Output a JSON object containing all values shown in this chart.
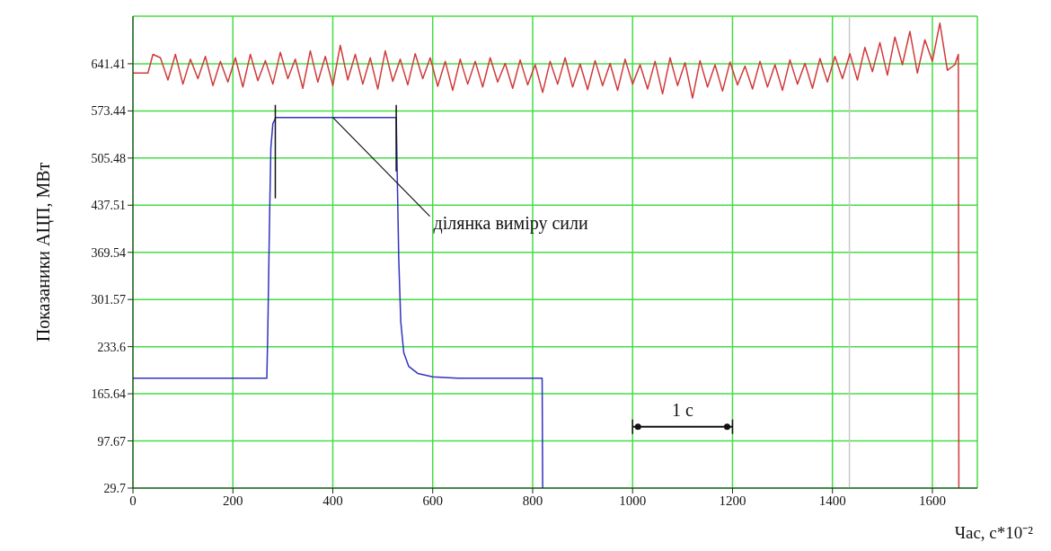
{
  "chart_data": {
    "type": "line",
    "xlabel": "Час, с*10⁻²",
    "ylabel": "Показаники АЦП, МВт",
    "xlim": [
      0,
      1690
    ],
    "xticks": [
      0,
      200,
      400,
      600,
      800,
      1000,
      1200,
      1400,
      1600
    ],
    "ylim": [
      29.7,
      710
    ],
    "yticks": [
      29.7,
      97.67,
      165.64,
      233.6,
      301.57,
      369.54,
      437.51,
      505.48,
      573.44,
      641.41
    ],
    "grid": true,
    "legend": false,
    "marker": "none",
    "line_style": "solid",
    "ref_lines": [
      {
        "axis": "x",
        "value": 1434,
        "color": "#c8c8c8"
      }
    ],
    "annotations": [
      {
        "text": "ділянка виміру сили",
        "x": 400,
        "y": 564
      },
      "1 с"
    ],
    "series": [
      {
        "color": "#d03a3a",
        "x": [
          0,
          30,
          40,
          55,
          70,
          85,
          100,
          115,
          130,
          145,
          160,
          175,
          190,
          205,
          220,
          235,
          250,
          265,
          280,
          295,
          310,
          325,
          340,
          355,
          370,
          385,
          400,
          415,
          430,
          445,
          460,
          475,
          490,
          505,
          520,
          535,
          550,
          565,
          580,
          595,
          610,
          625,
          640,
          655,
          670,
          685,
          700,
          715,
          730,
          745,
          760,
          775,
          790,
          805,
          820,
          835,
          850,
          865,
          880,
          895,
          910,
          925,
          940,
          955,
          970,
          985,
          1000,
          1015,
          1030,
          1045,
          1060,
          1075,
          1090,
          1105,
          1120,
          1135,
          1150,
          1165,
          1180,
          1195,
          1210,
          1225,
          1240,
          1255,
          1270,
          1285,
          1300,
          1315,
          1330,
          1345,
          1360,
          1375,
          1390,
          1405,
          1420,
          1435,
          1450,
          1465,
          1480,
          1495,
          1510,
          1525,
          1540,
          1555,
          1570,
          1585,
          1600,
          1615,
          1630,
          1645,
          1652,
          1653
        ],
        "values": [
          628,
          628,
          655,
          650,
          618,
          655,
          612,
          648,
          620,
          652,
          610,
          645,
          615,
          650,
          608,
          655,
          617,
          646,
          612,
          658,
          620,
          648,
          606,
          660,
          615,
          652,
          610,
          668,
          618,
          655,
          612,
          650,
          605,
          660,
          616,
          648,
          611,
          656,
          620,
          650,
          609,
          645,
          603,
          648,
          612,
          645,
          608,
          650,
          615,
          642,
          606,
          647,
          611,
          640,
          600,
          645,
          612,
          650,
          608,
          641,
          604,
          646,
          610,
          642,
          603,
          648,
          612,
          640,
          605,
          645,
          598,
          650,
          610,
          643,
          592,
          646,
          608,
          640,
          602,
          644,
          611,
          638,
          605,
          645,
          608,
          640,
          603,
          647,
          612,
          642,
          606,
          649,
          615,
          652,
          620,
          656,
          618,
          665,
          630,
          672,
          625,
          680,
          640,
          688,
          628,
          676,
          645,
          700,
          632,
          640,
          655,
          29.7
        ]
      },
      {
        "color": "#3232c0",
        "x": [
          0,
          268,
          270,
          273,
          276,
          280,
          286,
          527,
          529,
          532,
          536,
          542,
          552,
          570,
          600,
          650,
          819,
          820
        ],
        "values": [
          188,
          188,
          260,
          400,
          520,
          555,
          564,
          564,
          480,
          360,
          270,
          225,
          205,
          195,
          190,
          188,
          188,
          29.7
        ]
      }
    ]
  }
}
